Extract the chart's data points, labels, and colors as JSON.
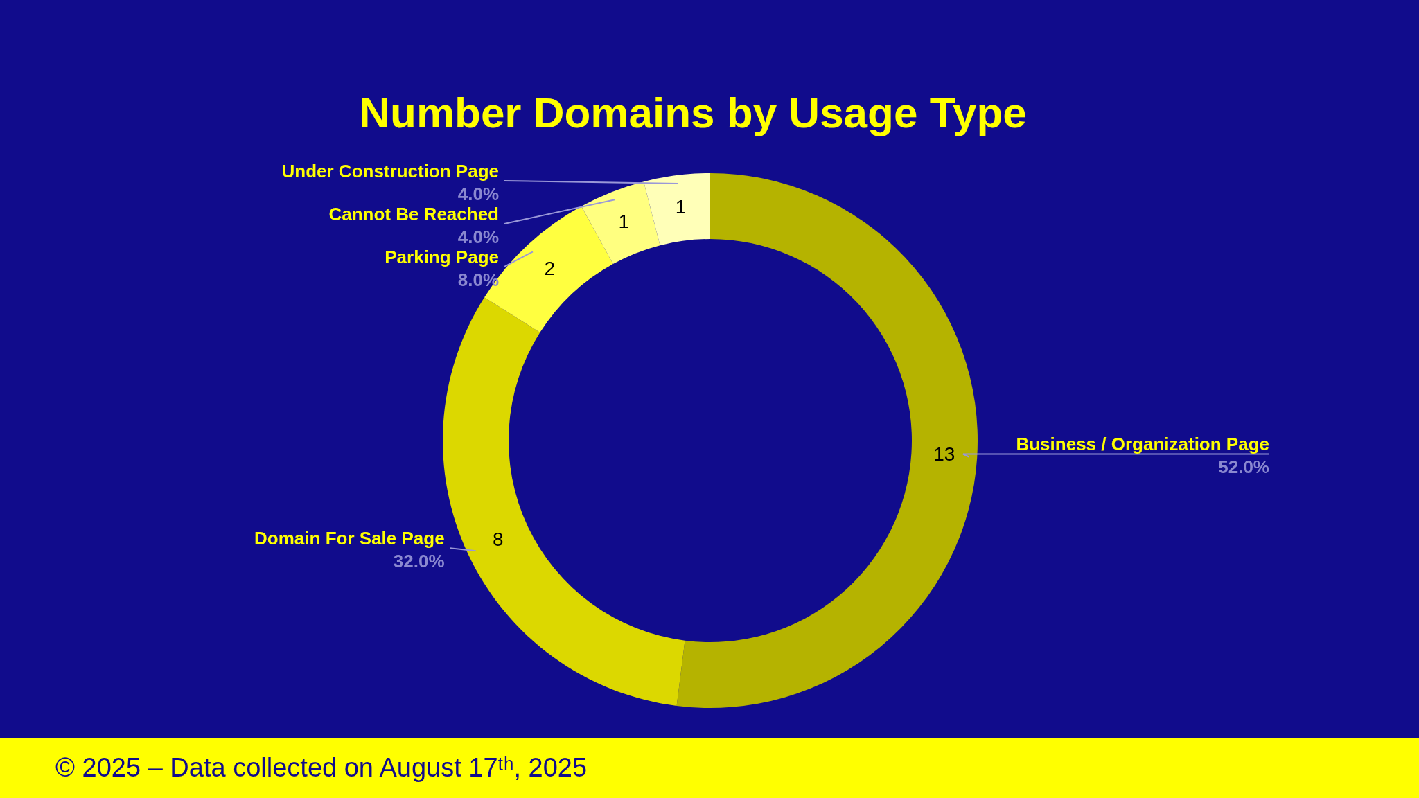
{
  "chart_data": {
    "type": "donut",
    "title": "Number Domains by Usage Type",
    "categories": [
      "Business / Organization Page",
      "Domain For Sale Page",
      "Parking Page",
      "Cannot Be Reached",
      "Under Construction Page"
    ],
    "values": [
      13,
      8,
      2,
      1,
      1
    ],
    "colors": [
      "#b5b300",
      "#dcd800",
      "#ffff40",
      "#ffff80",
      "#ffffb8"
    ],
    "data_labels": true,
    "annotations": [
      {
        "text": "52.0%",
        "x": "Business / Organization Page"
      },
      {
        "text": "32.0%",
        "x": "Domain For Sale Page"
      },
      {
        "text": "8.0%",
        "x": "Parking Page"
      },
      {
        "text": "4.0%",
        "x": "Cannot Be Reached"
      },
      {
        "text": "4.0%",
        "x": "Under Construction Page"
      },
      "© 2025 – Data collected on August 17ᵗʰ, 2025"
    ]
  }
}
